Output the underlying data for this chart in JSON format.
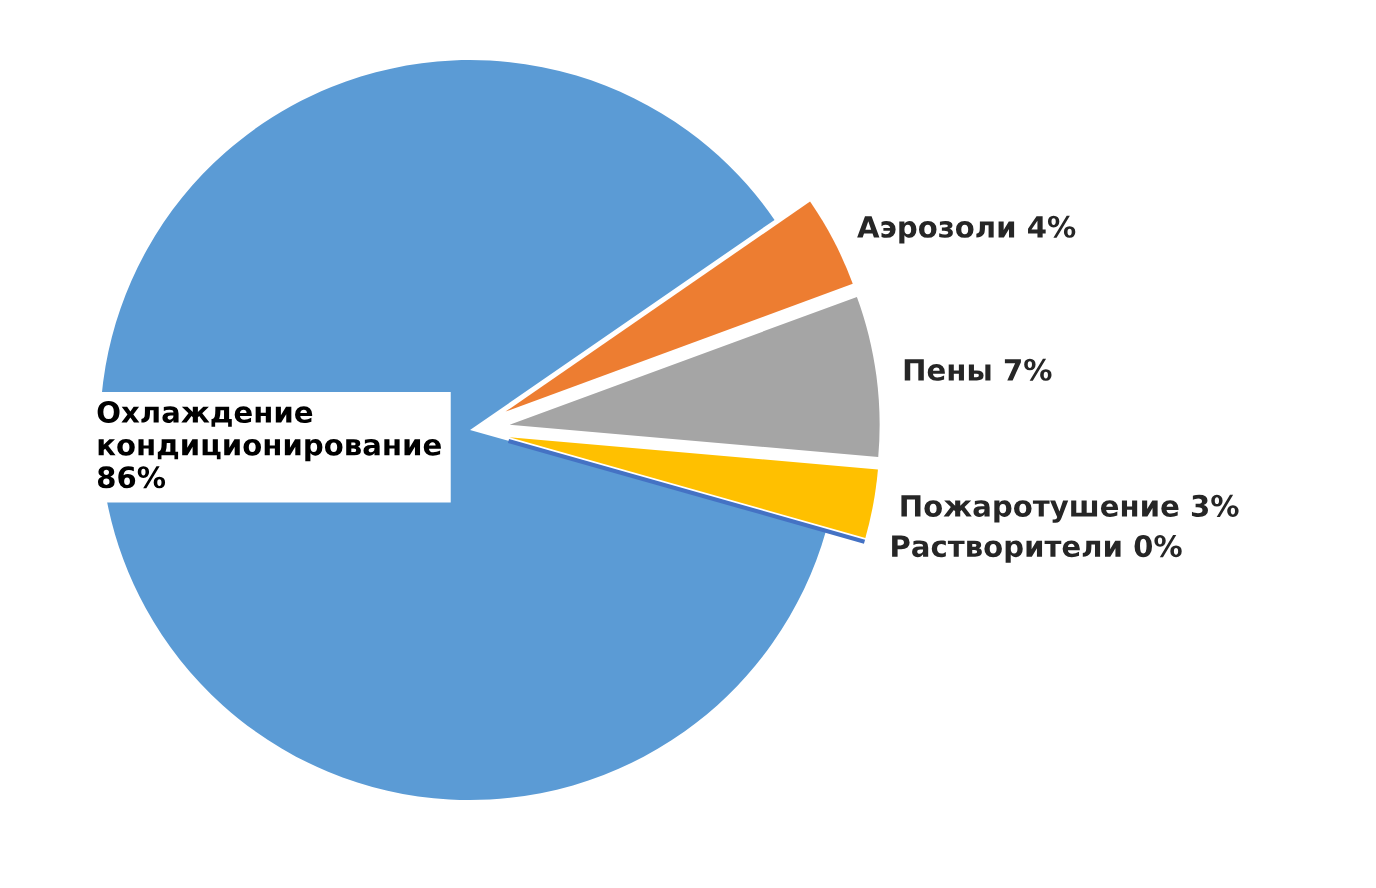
{
  "chart_data": {
    "type": "pie",
    "categories": [
      "Охлаждение\nкондиционирование",
      "Аэрозоли",
      "Пены",
      "Пожаротушение",
      "Растворители"
    ],
    "values": [
      86,
      4,
      7,
      3,
      0
    ],
    "colors": [
      "#5b9bd5",
      "#ed7d31",
      "#a5a5a5",
      "#ffc000",
      "#4472c4"
    ],
    "value_labels": [
      "86%",
      "4%",
      "7%",
      "3%",
      "0%"
    ]
  }
}
